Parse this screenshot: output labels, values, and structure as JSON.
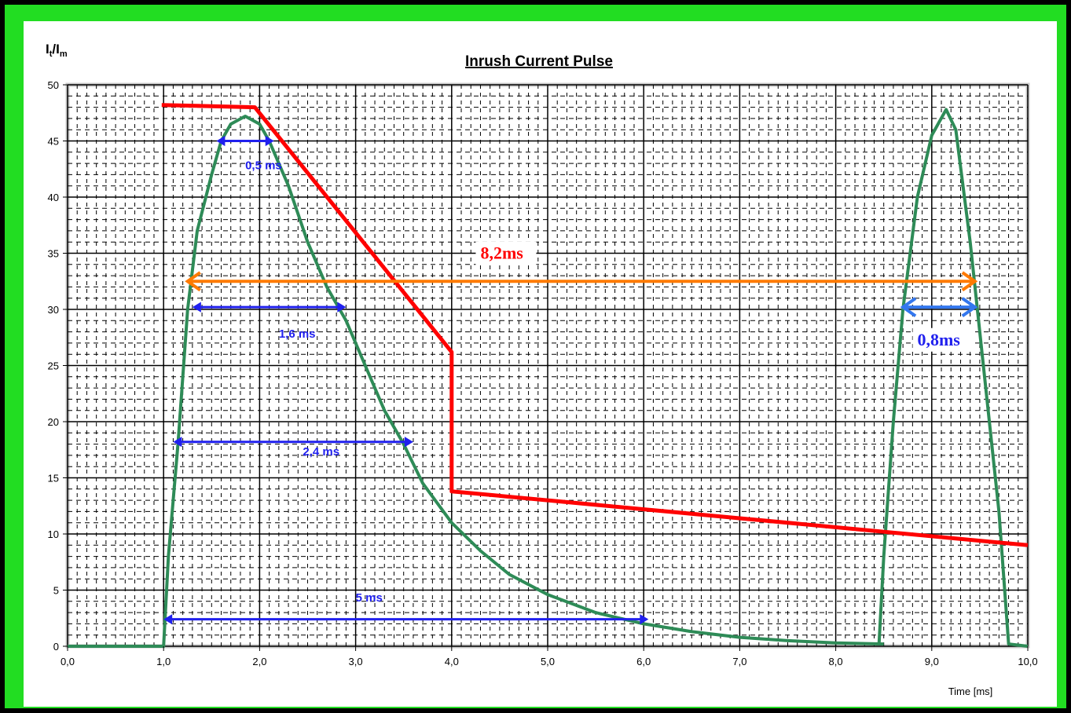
{
  "chart_data": {
    "type": "line",
    "title": "Inrush Current Pulse",
    "ylabel_main": "I",
    "ylabel_sub1": "t",
    "ylabel_slash": "/I",
    "ylabel_sub2": "m",
    "xlabel": "Time [ms]",
    "xlim": [
      0,
      10
    ],
    "ylim": [
      0,
      50
    ],
    "x_ticks": [
      "0,0",
      "1,0",
      "2,0",
      "3,0",
      "4,0",
      "5,0",
      "6,0",
      "7,0",
      "8,0",
      "9,0",
      "10,0"
    ],
    "y_ticks": [
      "0",
      "5",
      "10",
      "15",
      "20",
      "25",
      "30",
      "35",
      "40",
      "45",
      "50"
    ],
    "grid": true,
    "series": [
      {
        "color": "#2e8b57",
        "points": [
          [
            0,
            0
          ],
          [
            1.0,
            0
          ],
          [
            1.05,
            8
          ],
          [
            1.15,
            18
          ],
          [
            1.25,
            30
          ],
          [
            1.35,
            37
          ],
          [
            1.5,
            42
          ],
          [
            1.6,
            45
          ],
          [
            1.7,
            46.5
          ],
          [
            1.85,
            47.2
          ],
          [
            2.0,
            46.5
          ],
          [
            2.1,
            45
          ],
          [
            2.3,
            41
          ],
          [
            2.5,
            36
          ],
          [
            2.7,
            32
          ],
          [
            2.9,
            29
          ],
          [
            3.1,
            25
          ],
          [
            3.3,
            21
          ],
          [
            3.5,
            18
          ],
          [
            3.7,
            14.5
          ],
          [
            4.0,
            11
          ],
          [
            4.3,
            8.5
          ],
          [
            4.6,
            6.4
          ],
          [
            5.0,
            4.6
          ],
          [
            5.5,
            3.0
          ],
          [
            6.0,
            2.0
          ],
          [
            6.5,
            1.3
          ],
          [
            7.0,
            0.8
          ],
          [
            7.5,
            0.5
          ],
          [
            8.0,
            0.3
          ],
          [
            8.5,
            0.2
          ]
        ]
      },
      {
        "color": "#2e8b57",
        "points": [
          [
            8.45,
            0.1
          ],
          [
            8.5,
            8
          ],
          [
            8.6,
            20
          ],
          [
            8.7,
            30
          ],
          [
            8.85,
            40
          ],
          [
            9.0,
            45.5
          ],
          [
            9.15,
            47.8
          ],
          [
            9.25,
            46
          ],
          [
            9.4,
            36
          ],
          [
            9.55,
            24
          ],
          [
            9.7,
            12
          ],
          [
            9.8,
            0.2
          ],
          [
            10.0,
            0
          ]
        ]
      },
      {
        "color": "#ff0000",
        "points": [
          [
            0.98,
            48.2
          ],
          [
            1.95,
            48.0
          ],
          [
            4.0,
            26.2
          ],
          [
            4.0,
            13.8
          ],
          [
            10.0,
            9.0
          ]
        ]
      }
    ],
    "annotations": [
      {
        "text": "0,5 ms",
        "x_text": 1.85,
        "y_text": 42.5,
        "color": "#2020ee",
        "style": "blue",
        "arrow_from": [
          1.55,
          45
        ],
        "arrow_to": [
          2.15,
          45
        ]
      },
      {
        "text": "1,6 ms",
        "x_text": 2.2,
        "y_text": 27.5,
        "color": "#2020ee",
        "style": "blue",
        "arrow_from": [
          1.3,
          30.2
        ],
        "arrow_to": [
          2.9,
          30.2
        ]
      },
      {
        "text": "2,4 ms",
        "x_text": 2.45,
        "y_text": 17.0,
        "color": "#2020ee",
        "style": "blue",
        "arrow_from": [
          1.1,
          18.2
        ],
        "arrow_to": [
          3.6,
          18.2
        ]
      },
      {
        "text": "5 ms",
        "x_text": 3.0,
        "y_text": 4.0,
        "color": "#2020ee",
        "style": "blue",
        "arrow_from": [
          1.0,
          2.4
        ],
        "arrow_to": [
          6.05,
          2.4
        ]
      },
      {
        "text": "8,2ms",
        "x_text": 4.3,
        "y_text": 34.5,
        "color": "#ff0000",
        "style": "big",
        "arrow_from": [
          1.25,
          32.5
        ],
        "arrow_to": [
          9.45,
          32.5
        ],
        "arrow_color": "#ff7a00"
      },
      {
        "text": "0,8ms",
        "x_text": 8.85,
        "y_text": 26.8,
        "color": "#2020ee",
        "style": "big",
        "arrow_from": [
          8.7,
          30.2
        ],
        "arrow_to": [
          9.45,
          30.2
        ],
        "arrow_color": "#3377ee"
      }
    ]
  }
}
